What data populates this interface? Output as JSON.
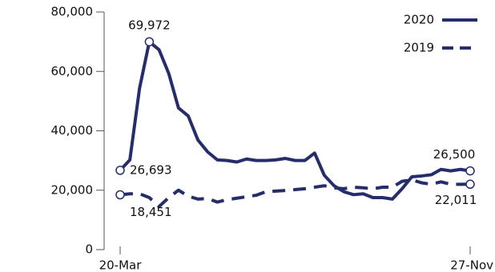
{
  "chart_data": {
    "type": "line",
    "categories": [
      "20-Mar",
      null,
      null,
      null,
      null,
      null,
      null,
      null,
      null,
      null,
      null,
      null,
      null,
      null,
      null,
      null,
      null,
      null,
      null,
      null,
      null,
      null,
      null,
      null,
      null,
      null,
      null,
      null,
      null,
      null,
      null,
      null,
      null,
      null,
      null,
      null,
      "27-Nov"
    ],
    "series": [
      {
        "name": "2020",
        "color": "#262d6b",
        "dash": false,
        "values": [
          26693,
          30200,
          54400,
          69972,
          67300,
          59300,
          47700,
          45000,
          36900,
          32900,
          30200,
          30000,
          29500,
          30500,
          30000,
          30000,
          30200,
          30700,
          30000,
          30000,
          32500,
          25000,
          21500,
          19500,
          18500,
          18800,
          17500,
          17500,
          17000,
          20500,
          24500,
          24800,
          25200,
          27000,
          26500,
          27000,
          26500
        ],
        "value_labels": [
          "26,693",
          null,
          null,
          "69,972",
          null,
          null,
          null,
          null,
          null,
          null,
          null,
          null,
          null,
          null,
          null,
          null,
          null,
          null,
          null,
          null,
          null,
          null,
          null,
          null,
          null,
          null,
          null,
          null,
          null,
          null,
          null,
          null,
          null,
          null,
          null,
          null,
          "26,500"
        ]
      },
      {
        "name": "2019",
        "color": "#262d6b",
        "dash": true,
        "values": [
          18451,
          18800,
          18800,
          17500,
          14500,
          17500,
          20000,
          18000,
          17000,
          17200,
          16000,
          16800,
          17300,
          17800,
          18300,
          19500,
          19700,
          19900,
          20200,
          20500,
          21000,
          21500,
          20800,
          20500,
          21000,
          20800,
          20500,
          21000,
          21000,
          23000,
          23500,
          22500,
          22000,
          22800,
          22000,
          22000,
          22011
        ],
        "value_labels": [
          "18,451",
          null,
          null,
          null,
          null,
          null,
          null,
          null,
          null,
          null,
          null,
          null,
          null,
          null,
          null,
          null,
          null,
          null,
          null,
          null,
          null,
          null,
          null,
          null,
          null,
          null,
          null,
          null,
          null,
          null,
          null,
          null,
          null,
          null,
          null,
          null,
          "22,011"
        ]
      }
    ],
    "ylim": [
      0,
      80000
    ],
    "yticks": [
      0,
      {
        "value": 20000,
        "label": "20,000"
      },
      {
        "value": 40000,
        "label": "40,000"
      },
      {
        "value": 60000,
        "label": "60,000"
      },
      {
        "value": 80000,
        "label": "80,000"
      }
    ],
    "grid": false,
    "legend": "top-right"
  }
}
